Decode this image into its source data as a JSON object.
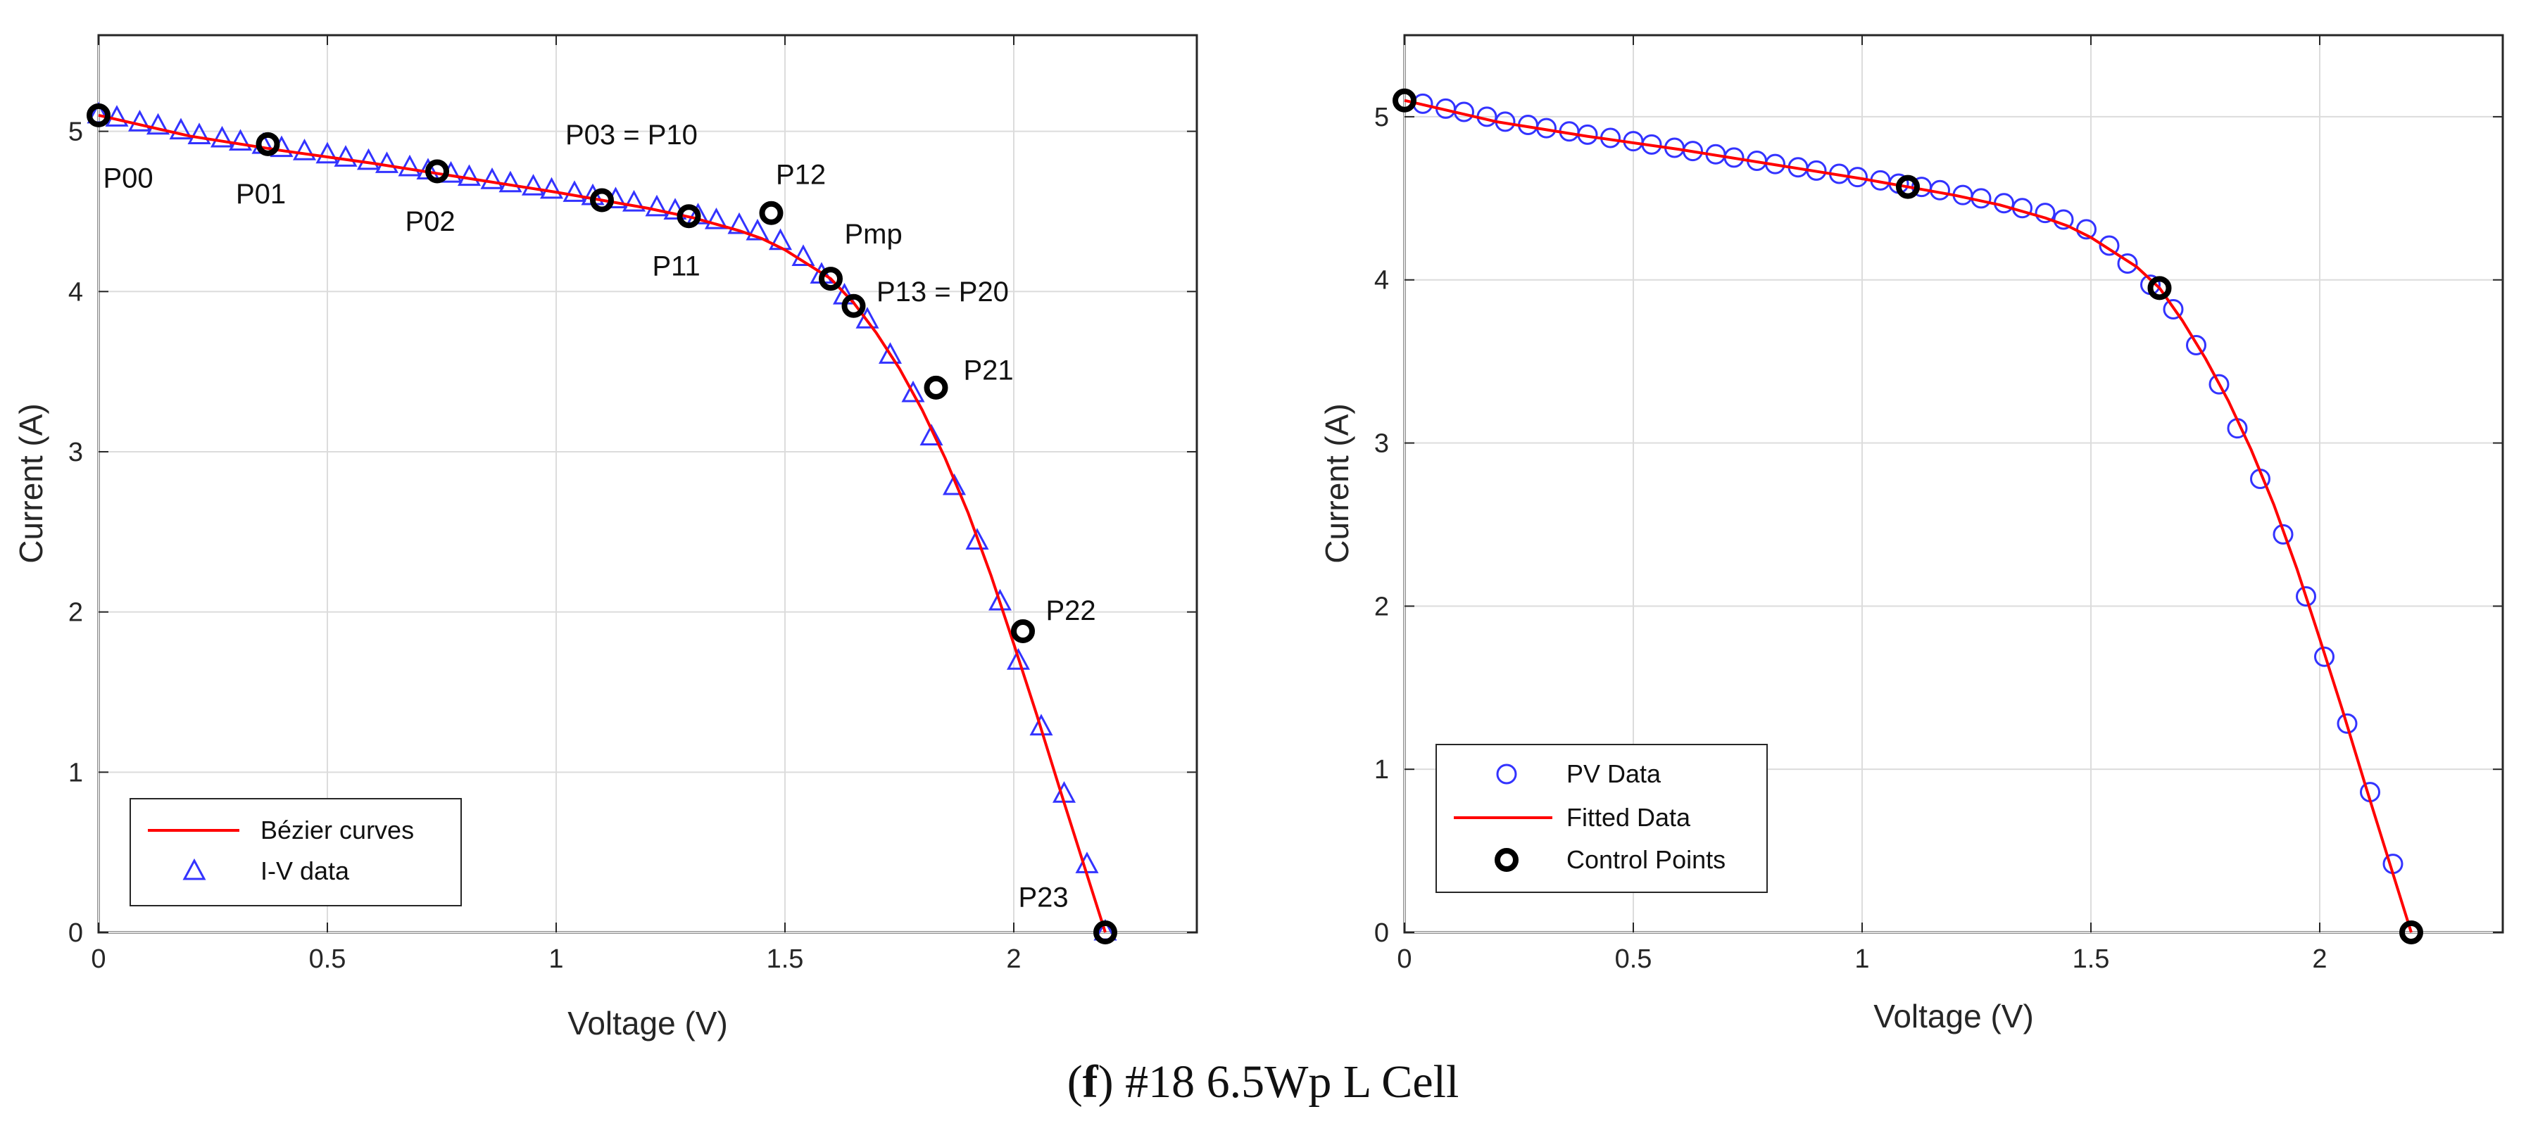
{
  "caption": {
    "prefix": "(",
    "letter": "f",
    "suffix": ") #18 6.5Wp L Cell"
  },
  "chart_data": [
    {
      "type": "line",
      "xlabel": "Voltage (V)",
      "ylabel": "Current (A)",
      "xlim": [
        0,
        2.4
      ],
      "ylim": [
        0,
        5.6
      ],
      "xticks": [
        0,
        0.5,
        1,
        1.5,
        2
      ],
      "xtick_labels": [
        "0",
        "0.5",
        "1",
        "1.5",
        "2"
      ],
      "yticks": [
        0,
        1,
        2,
        3,
        4,
        5
      ],
      "ytick_labels": [
        "0",
        "1",
        "2",
        "3",
        "4",
        "5"
      ],
      "grid": true,
      "legend_position": "bottom-left",
      "series": [
        {
          "name": "Bézier curves",
          "kind": "line",
          "color": "#ff0000",
          "x": [
            0,
            0.2,
            0.4,
            0.6,
            0.8,
            1.0,
            1.1,
            1.2,
            1.3,
            1.4,
            1.45,
            1.5,
            1.55,
            1.6,
            1.65,
            1.7,
            1.75,
            1.8,
            1.85,
            1.9,
            1.95,
            2.0,
            2.05,
            2.1,
            2.15,
            2.2
          ],
          "y": [
            5.1,
            4.97,
            4.88,
            4.8,
            4.71,
            4.62,
            4.57,
            4.52,
            4.46,
            4.38,
            4.33,
            4.26,
            4.17,
            4.08,
            3.93,
            3.74,
            3.52,
            3.26,
            2.96,
            2.62,
            2.23,
            1.8,
            1.36,
            0.9,
            0.45,
            0
          ]
        },
        {
          "name": "I-V data",
          "kind": "marker",
          "marker": "triangle",
          "color": "#3333ff",
          "x": [
            0,
            0.04,
            0.09,
            0.13,
            0.18,
            0.22,
            0.27,
            0.31,
            0.36,
            0.4,
            0.45,
            0.5,
            0.54,
            0.59,
            0.63,
            0.68,
            0.72,
            0.77,
            0.81,
            0.86,
            0.9,
            0.95,
            0.99,
            1.04,
            1.08,
            1.13,
            1.17,
            1.22,
            1.26,
            1.31,
            1.35,
            1.4,
            1.44,
            1.49,
            1.54,
            1.58,
            1.63,
            1.68,
            1.73,
            1.78,
            1.82,
            1.87,
            1.92,
            1.97,
            2.01,
            2.06,
            2.11,
            2.16,
            2.2
          ],
          "y": [
            5.1,
            5.08,
            5.05,
            5.03,
            5.0,
            4.97,
            4.95,
            4.93,
            4.91,
            4.89,
            4.87,
            4.85,
            4.83,
            4.81,
            4.79,
            4.77,
            4.75,
            4.73,
            4.71,
            4.69,
            4.67,
            4.65,
            4.63,
            4.61,
            4.59,
            4.57,
            4.55,
            4.52,
            4.5,
            4.47,
            4.44,
            4.41,
            4.37,
            4.31,
            4.21,
            4.1,
            3.97,
            3.82,
            3.6,
            3.36,
            3.09,
            2.78,
            2.44,
            2.06,
            1.69,
            1.28,
            0.86,
            0.42,
            0
          ]
        },
        {
          "name": "Control points",
          "kind": "marker",
          "marker": "circle",
          "color": "#000000",
          "x": [
            0,
            0.37,
            0.74,
            1.1,
            1.29,
            1.47,
            1.6,
            1.65,
            1.83,
            2.02,
            2.2
          ],
          "y": [
            5.1,
            4.92,
            4.75,
            4.57,
            4.47,
            4.49,
            4.08,
            3.91,
            3.4,
            1.88,
            0
          ]
        }
      ],
      "annotations": [
        {
          "text": "P00",
          "x": 0.01,
          "y": 4.65
        },
        {
          "text": "P01",
          "x": 0.3,
          "y": 4.55
        },
        {
          "text": "P02",
          "x": 0.67,
          "y": 4.38
        },
        {
          "text": "P03 = P10",
          "x": 1.02,
          "y": 4.92
        },
        {
          "text": "P11",
          "x": 1.21,
          "y": 4.1
        },
        {
          "text": "P12",
          "x": 1.48,
          "y": 4.67
        },
        {
          "text": "Pmp",
          "x": 1.63,
          "y": 4.3
        },
        {
          "text": "P13 = P20",
          "x": 1.7,
          "y": 3.94
        },
        {
          "text": "P21",
          "x": 1.89,
          "y": 3.45
        },
        {
          "text": "P22",
          "x": 2.07,
          "y": 1.95
        },
        {
          "text": "P23",
          "x": 2.01,
          "y": 0.16
        }
      ],
      "legend": [
        {
          "label": "Bézier curves",
          "symbol": "line",
          "color": "#ff0000"
        },
        {
          "label": "I-V data",
          "symbol": "triangle",
          "color": "#3333ff"
        }
      ]
    },
    {
      "type": "line",
      "xlabel": "Voltage (V)",
      "ylabel": "Current (A)",
      "xlim": [
        0,
        2.4
      ],
      "ylim": [
        0,
        5.5
      ],
      "xticks": [
        0,
        0.5,
        1,
        1.5,
        2
      ],
      "xtick_labels": [
        "0",
        "0.5",
        "1",
        "1.5",
        "2"
      ],
      "yticks": [
        0,
        1,
        2,
        3,
        4,
        5
      ],
      "ytick_labels": [
        "0",
        "1",
        "2",
        "3",
        "4",
        "5"
      ],
      "grid": true,
      "legend_position": "bottom-left",
      "series": [
        {
          "name": "PV Data",
          "kind": "marker",
          "marker": "circle-open",
          "color": "#3333ff",
          "x": [
            0,
            0.04,
            0.09,
            0.13,
            0.18,
            0.22,
            0.27,
            0.31,
            0.36,
            0.4,
            0.45,
            0.5,
            0.54,
            0.59,
            0.63,
            0.68,
            0.72,
            0.77,
            0.81,
            0.86,
            0.9,
            0.95,
            0.99,
            1.04,
            1.08,
            1.13,
            1.17,
            1.22,
            1.26,
            1.31,
            1.35,
            1.4,
            1.44,
            1.49,
            1.54,
            1.58,
            1.63,
            1.68,
            1.73,
            1.78,
            1.82,
            1.87,
            1.92,
            1.97,
            2.01,
            2.06,
            2.11,
            2.16,
            2.2
          ],
          "y": [
            5.1,
            5.08,
            5.05,
            5.03,
            5.0,
            4.97,
            4.95,
            4.93,
            4.91,
            4.89,
            4.87,
            4.85,
            4.83,
            4.81,
            4.79,
            4.77,
            4.75,
            4.73,
            4.71,
            4.69,
            4.67,
            4.65,
            4.63,
            4.61,
            4.59,
            4.57,
            4.55,
            4.52,
            4.5,
            4.47,
            4.44,
            4.41,
            4.37,
            4.31,
            4.21,
            4.1,
            3.97,
            3.82,
            3.6,
            3.36,
            3.09,
            2.78,
            2.44,
            2.06,
            1.69,
            1.28,
            0.86,
            0.42,
            0
          ]
        },
        {
          "name": "Fitted Data",
          "kind": "line",
          "color": "#ff0000",
          "x": [
            0,
            0.2,
            0.4,
            0.6,
            0.8,
            1.0,
            1.1,
            1.2,
            1.3,
            1.4,
            1.45,
            1.5,
            1.55,
            1.6,
            1.65,
            1.7,
            1.75,
            1.8,
            1.85,
            1.9,
            1.95,
            2.0,
            2.05,
            2.1,
            2.15,
            2.2
          ],
          "y": [
            5.1,
            4.97,
            4.88,
            4.8,
            4.71,
            4.62,
            4.57,
            4.52,
            4.46,
            4.38,
            4.33,
            4.26,
            4.17,
            4.08,
            3.95,
            3.75,
            3.52,
            3.26,
            2.96,
            2.62,
            2.23,
            1.8,
            1.36,
            0.9,
            0.45,
            0
          ]
        },
        {
          "name": "Control Points",
          "kind": "marker",
          "marker": "circle",
          "color": "#000000",
          "x": [
            0,
            1.1,
            1.65,
            2.2
          ],
          "y": [
            5.1,
            4.57,
            3.95,
            0
          ]
        }
      ],
      "annotations": [],
      "legend": [
        {
          "label": "PV Data",
          "symbol": "circle-open",
          "color": "#3333ff"
        },
        {
          "label": "Fitted Data",
          "symbol": "line",
          "color": "#ff0000"
        },
        {
          "label": "Control Points",
          "symbol": "circle",
          "color": "#000000"
        }
      ]
    }
  ]
}
